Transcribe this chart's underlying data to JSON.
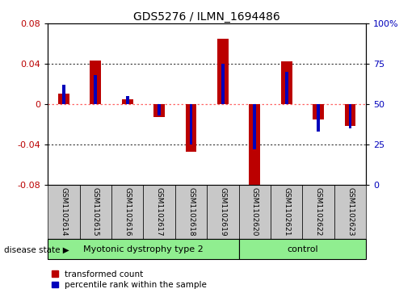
{
  "title": "GDS5276 / ILMN_1694486",
  "samples": [
    "GSM1102614",
    "GSM1102615",
    "GSM1102616",
    "GSM1102617",
    "GSM1102618",
    "GSM1102619",
    "GSM1102620",
    "GSM1102621",
    "GSM1102622",
    "GSM1102623"
  ],
  "red_values": [
    0.01,
    0.043,
    0.005,
    -0.013,
    -0.047,
    0.065,
    -0.087,
    0.042,
    -0.015,
    -0.022
  ],
  "blue_values_pct": [
    62,
    68,
    55,
    43,
    25,
    75,
    22,
    70,
    33,
    35
  ],
  "ylim_left": [
    -0.08,
    0.08
  ],
  "ylim_right": [
    0,
    100
  ],
  "yticks_left": [
    -0.08,
    -0.04,
    0.0,
    0.04,
    0.08
  ],
  "yticks_right": [
    0,
    25,
    50,
    75,
    100
  ],
  "group1_label": "Myotonic dystrophy type 2",
  "group1_count": 6,
  "group2_label": "control",
  "group2_count": 4,
  "disease_state_label": "disease state",
  "legend_red": "transformed count",
  "legend_blue": "percentile rank within the sample",
  "red_color": "#BB0000",
  "blue_color": "#0000BB",
  "group_color": "#90EE90",
  "bg_color": "#C8C8C8",
  "zero_line_color": "#FF6666",
  "grid_color": "#333333",
  "right_ytick_labels": [
    "0",
    "25",
    "50",
    "75",
    "100%"
  ]
}
